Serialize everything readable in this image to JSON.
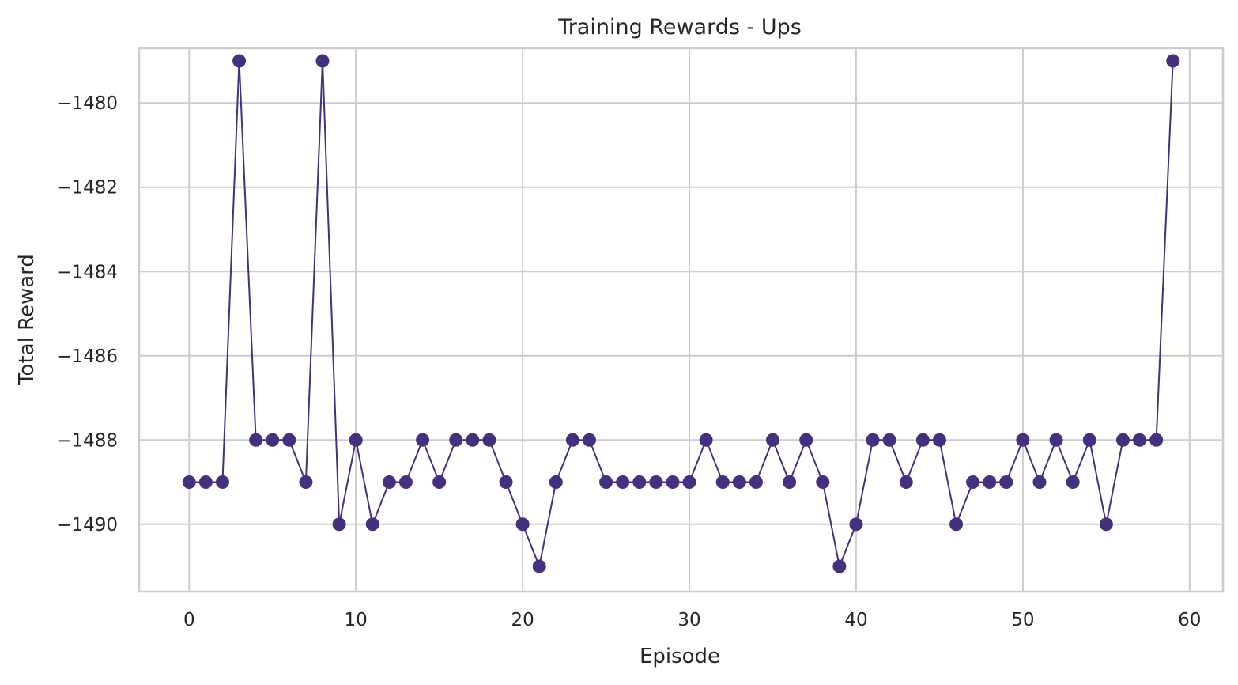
{
  "colors": {
    "series": "#45307f",
    "grid": "#cccccc",
    "text": "#262626"
  },
  "chart_data": {
    "type": "line",
    "title": "Training Rewards - Ups",
    "xlabel": "Episode",
    "ylabel": "Total Reward",
    "xlim": [
      -3,
      62
    ],
    "ylim": [
      -1491.6,
      -1478.7
    ],
    "xticks": [
      0,
      10,
      20,
      30,
      40,
      50,
      60
    ],
    "xtick_labels": [
      "0",
      "10",
      "20",
      "30",
      "40",
      "50",
      "60"
    ],
    "yticks": [
      -1480,
      -1482,
      -1484,
      -1486,
      -1488,
      -1490
    ],
    "ytick_labels": [
      "−1480",
      "−1482",
      "−1484",
      "−1486",
      "−1488",
      "−1490"
    ],
    "grid": true,
    "marker": "circle",
    "series": [
      {
        "x": [
          0,
          1,
          2,
          3,
          4,
          5,
          6,
          7,
          8,
          9,
          10,
          11,
          12,
          13,
          14,
          15,
          16,
          17,
          18,
          19,
          20,
          21,
          22,
          23,
          24,
          25,
          26,
          27,
          28,
          29,
          30,
          31,
          32,
          33,
          34,
          35,
          36,
          37,
          38,
          39,
          40,
          41,
          42,
          43,
          44,
          45,
          46,
          47,
          48,
          49,
          50,
          51,
          52,
          53,
          54,
          55,
          56,
          57,
          58,
          59
        ],
        "values": [
          -1489,
          -1489,
          -1489,
          -1479,
          -1488,
          -1488,
          -1488,
          -1489,
          -1479,
          -1490,
          -1488,
          -1490,
          -1489,
          -1489,
          -1488,
          -1489,
          -1488,
          -1488,
          -1488,
          -1489,
          -1490,
          -1491,
          -1489,
          -1488,
          -1488,
          -1489,
          -1489,
          -1489,
          -1489,
          -1489,
          -1489,
          -1488,
          -1489,
          -1489,
          -1489,
          -1488,
          -1489,
          -1488,
          -1489,
          -1491,
          -1490,
          -1488,
          -1488,
          -1489,
          -1488,
          -1488,
          -1490,
          -1489,
          -1489,
          -1489,
          -1488,
          -1489,
          -1488,
          -1489,
          -1488,
          -1490,
          -1488,
          -1488,
          -1488,
          -1479
        ]
      }
    ]
  }
}
